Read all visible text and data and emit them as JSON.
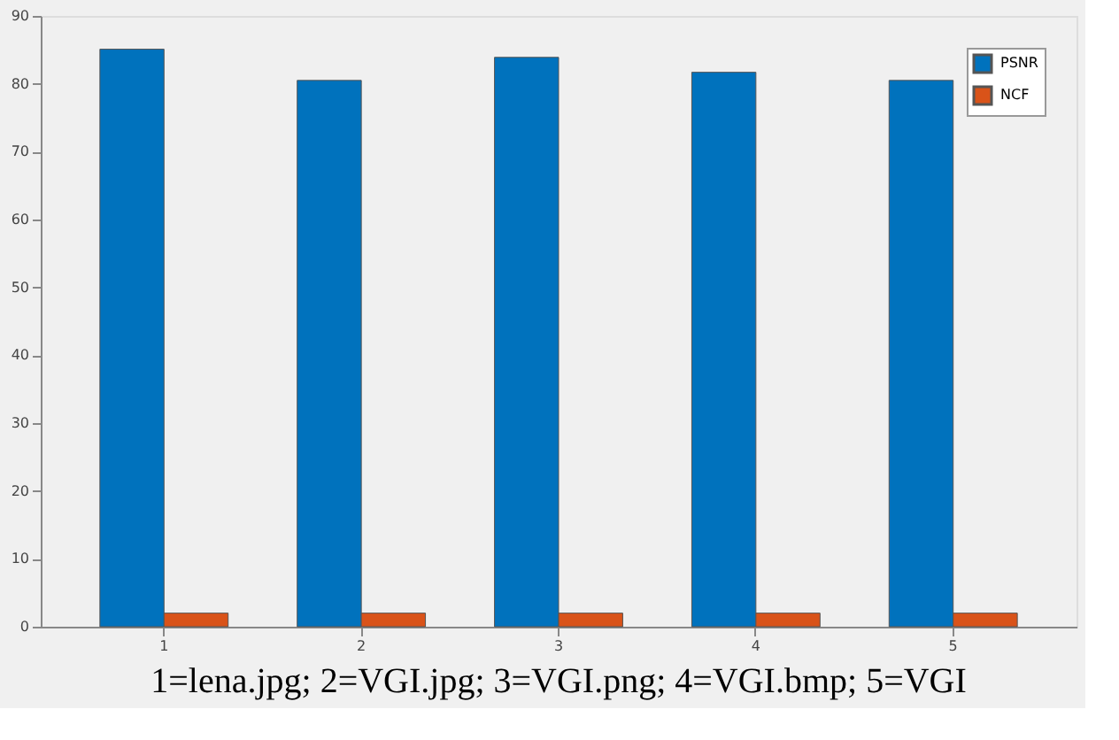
{
  "chart_data": {
    "type": "bar",
    "categories": [
      "1",
      "2",
      "3",
      "4",
      "5"
    ],
    "series": [
      {
        "name": "PSNR",
        "color": "#0072bd",
        "values": [
          85.1,
          80.5,
          83.9,
          81.7,
          80.5
        ]
      },
      {
        "name": "NCF",
        "color": "#d95319",
        "values": [
          2,
          2,
          2,
          2,
          2
        ]
      }
    ],
    "ylim": [
      0,
      90
    ],
    "yticks": [
      0,
      10,
      20,
      30,
      40,
      50,
      60,
      70,
      80,
      90
    ],
    "grid": false,
    "legend": "top right",
    "annotations": [
      "1=lena.jpg; 2=VGI.jpg; 3=VGI.png; 4=VGI.bmp; 5=VGI"
    ]
  }
}
